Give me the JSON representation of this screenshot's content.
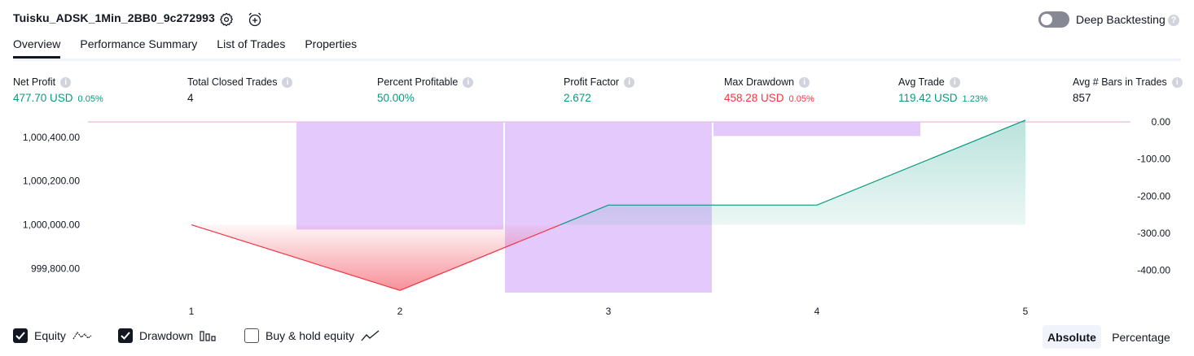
{
  "header": {
    "strategy_name": "Tuisku_ADSK_1Min_2BB0_9c272993",
    "deep_backtesting_label": "Deep Backtesting",
    "help_glyph": "?"
  },
  "tabs": [
    {
      "label": "Overview",
      "active": true
    },
    {
      "label": "Performance Summary",
      "active": false
    },
    {
      "label": "List of Trades",
      "active": false
    },
    {
      "label": "Properties",
      "active": false
    }
  ],
  "metrics": {
    "info_glyph": "i",
    "net_profit": {
      "label": "Net Profit",
      "value": "477.70 USD",
      "pct": "0.05%"
    },
    "total_closed_trades": {
      "label": "Total Closed Trades",
      "value": "4"
    },
    "percent_profitable": {
      "label": "Percent Profitable",
      "value": "50.00%"
    },
    "profit_factor": {
      "label": "Profit Factor",
      "value": "2.672"
    },
    "max_drawdown": {
      "label": "Max Drawdown",
      "value": "458.28 USD",
      "pct": "0.05%"
    },
    "avg_trade": {
      "label": "Avg Trade",
      "value": "119.42 USD",
      "pct": "1.23%"
    },
    "avg_bars": {
      "label": "Avg # Bars in Trades",
      "value": "857"
    }
  },
  "chart_data": {
    "type": "line",
    "x": [
      1,
      2,
      3,
      4,
      5
    ],
    "x_tick_labels": [
      "1",
      "2",
      "3",
      "4",
      "5"
    ],
    "left_axis": {
      "ticks": [
        1000400,
        1000200,
        1000000,
        999800
      ],
      "tick_labels": [
        "1,000,400.00",
        "1,000,200.00",
        "1,000,000.00",
        "999,800.00"
      ],
      "ylim": [
        999690,
        1000470
      ]
    },
    "right_axis": {
      "ticks": [
        0,
        -100,
        -200,
        -300,
        -400
      ],
      "tick_labels": [
        "0.00",
        "-100.00",
        "-200.00",
        "-300.00",
        "-400.00"
      ],
      "ylim": [
        -460,
        0
      ]
    },
    "series": [
      {
        "name": "Equity",
        "axis": "left",
        "values": [
          1000000,
          999700,
          1000090,
          1000090,
          1000478
        ]
      },
      {
        "name": "Drawdown",
        "axis": "right",
        "type": "bar",
        "values": [
          0,
          -290,
          -460,
          -38,
          0
        ]
      }
    ],
    "colors": {
      "equity_up": "#089981",
      "equity_down": "#f23645",
      "drawdown": "#e1c4fc",
      "zero_line": "#e7a8ce"
    }
  },
  "legend": {
    "equity": {
      "label": "Equity",
      "checked": true
    },
    "drawdown": {
      "label": "Drawdown",
      "checked": true
    },
    "buy_hold": {
      "label": "Buy & hold equity",
      "checked": false
    }
  },
  "view_toggle": {
    "absolute": "Absolute",
    "percentage": "Percentage",
    "selected": "Absolute"
  }
}
